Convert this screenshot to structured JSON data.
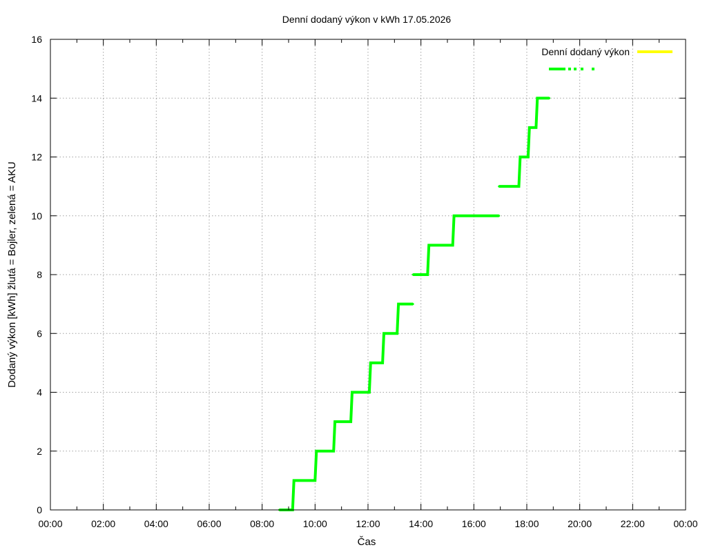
{
  "chart_data": {
    "type": "line",
    "title": "Denní dodaný výkon v kWh 17.05.2026",
    "xlabel": "Čas",
    "ylabel": "Dodaný výkon [kWh]  žlutá = Bojler, zelená = AKU",
    "xlim": [
      0,
      24
    ],
    "ylim": [
      0,
      16
    ],
    "x_unit": "hours",
    "x_ticks": [
      {
        "value": 0,
        "label": "00:00"
      },
      {
        "value": 2,
        "label": "02:00"
      },
      {
        "value": 4,
        "label": "04:00"
      },
      {
        "value": 6,
        "label": "06:00"
      },
      {
        "value": 8,
        "label": "08:00"
      },
      {
        "value": 10,
        "label": "10:00"
      },
      {
        "value": 12,
        "label": "12:00"
      },
      {
        "value": 14,
        "label": "14:00"
      },
      {
        "value": 16,
        "label": "16:00"
      },
      {
        "value": 18,
        "label": "18:00"
      },
      {
        "value": 20,
        "label": "20:00"
      },
      {
        "value": 22,
        "label": "22:00"
      },
      {
        "value": 24,
        "label": "00:00"
      }
    ],
    "y_ticks": [
      {
        "value": 0,
        "label": "0"
      },
      {
        "value": 2,
        "label": "2"
      },
      {
        "value": 4,
        "label": "4"
      },
      {
        "value": 6,
        "label": "6"
      },
      {
        "value": 8,
        "label": "8"
      },
      {
        "value": 10,
        "label": "10"
      },
      {
        "value": 12,
        "label": "12"
      },
      {
        "value": 14,
        "label": "14"
      },
      {
        "value": 16,
        "label": "16"
      }
    ],
    "grid": true,
    "legend_position": "top-right",
    "series": [
      {
        "name": "Denní dodaný výkon",
        "color": "#ffff00",
        "points": []
      },
      {
        "name": "",
        "color": "#00ff00",
        "points": [
          [
            8.65,
            0
          ],
          [
            9.15,
            0
          ],
          [
            9.2,
            1
          ],
          [
            10.0,
            1
          ],
          [
            10.05,
            2
          ],
          [
            10.7,
            2
          ],
          [
            10.75,
            3
          ],
          [
            11.35,
            3
          ],
          [
            11.4,
            4
          ],
          [
            12.05,
            4
          ],
          [
            12.1,
            5
          ],
          [
            12.55,
            5
          ],
          [
            12.6,
            6
          ],
          [
            13.1,
            6
          ],
          [
            13.15,
            7
          ],
          [
            13.7,
            7
          ],
          null,
          [
            13.7,
            8
          ],
          [
            14.25,
            8
          ],
          [
            14.3,
            9
          ],
          [
            15.2,
            9
          ],
          [
            15.25,
            10
          ],
          [
            16.95,
            10
          ],
          null,
          [
            16.95,
            11
          ],
          [
            17.7,
            11
          ],
          [
            17.75,
            12
          ],
          [
            18.05,
            12
          ],
          [
            18.1,
            13
          ],
          [
            18.35,
            13
          ],
          [
            18.4,
            14
          ],
          [
            18.85,
            14
          ]
        ]
      }
    ]
  }
}
